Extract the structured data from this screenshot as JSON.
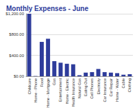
{
  "chart_data": {
    "type": "bar",
    "title": "Monthly Expenses - June",
    "categories": [
      "Childcare",
      "Home - Phone",
      "Food",
      "Home - Mortgage",
      "Gas",
      "Entertainment",
      "Home - Electric",
      "Health Insurance",
      "Natural Gas",
      "Eating Out",
      "Cell Phones",
      "Electricity",
      "Car Insurance",
      "Car Repair",
      "Home - Water",
      "Cable",
      "Clothing"
    ],
    "values": [
      1200,
      5,
      660,
      720,
      290,
      260,
      240,
      230,
      20,
      70,
      80,
      140,
      80,
      70,
      60,
      30,
      40
    ],
    "color": "#2e3c9b",
    "ylim": [
      0,
      1200
    ],
    "yticks": [
      {
        "value": 0,
        "label": "$0.00"
      },
      {
        "value": 400,
        "label": "$400.00"
      },
      {
        "value": 800,
        "label": "$800.00"
      },
      {
        "value": 1200,
        "label": "$1,200.00"
      }
    ],
    "grid": true
  }
}
